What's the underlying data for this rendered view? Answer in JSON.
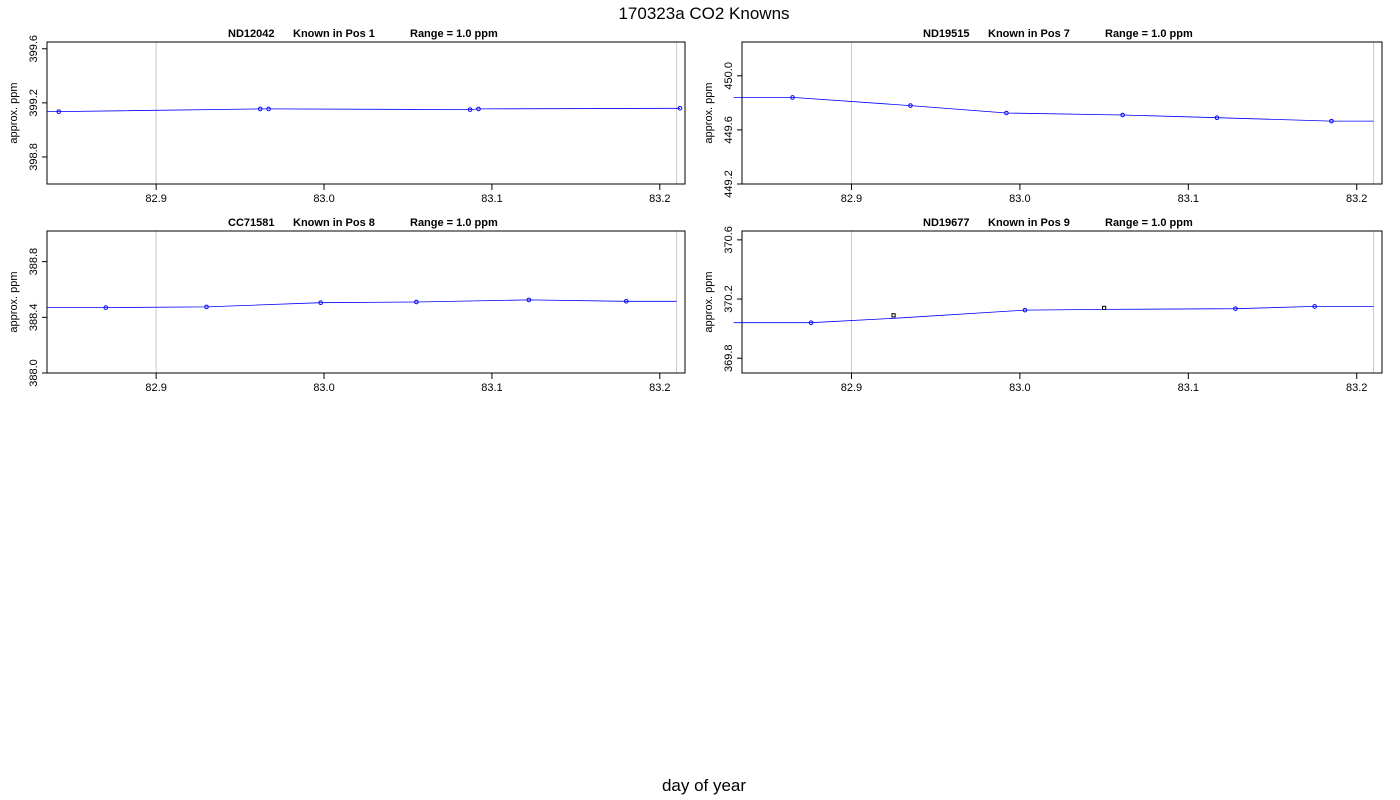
{
  "figure": {
    "title": "170323a   CO2 Knowns",
    "xlabel": "day of year"
  },
  "colors": {
    "line": "#0000ff",
    "points": "#0000ff",
    "marker_ref": "#000000",
    "vlines": "#c8c8c8",
    "frame": "#000000"
  },
  "chart_data": [
    {
      "type": "line",
      "title_parts": [
        "ND12042",
        "Known in Pos 1",
        "Range = 1.0 ppm"
      ],
      "ylabel": "approx. ppm",
      "xlim": [
        82.835,
        83.215
      ],
      "ylim": [
        398.6,
        399.65
      ],
      "xticks": [
        82.9,
        83.0,
        83.1,
        83.2
      ],
      "xtick_labels": [
        "82.9",
        "83.0",
        "83.1",
        "83.2"
      ],
      "yticks": [
        398.8,
        399.2,
        399.6
      ],
      "ytick_labels": [
        "398.8",
        "399.2",
        "399.6"
      ],
      "vlines": [
        82.9,
        83.21
      ],
      "line": {
        "x": [
          82.835,
          82.842,
          82.962,
          82.967,
          83.087,
          83.092,
          83.212
        ],
        "y": [
          399.135,
          399.135,
          399.155,
          399.155,
          399.15,
          399.155,
          399.16
        ]
      },
      "points": {
        "x": [
          82.842,
          82.962,
          82.967,
          83.087,
          83.092,
          83.212
        ],
        "y": [
          399.135,
          399.155,
          399.155,
          399.15,
          399.155,
          399.16
        ]
      },
      "ref_points": {
        "x": [],
        "y": []
      }
    },
    {
      "type": "line",
      "title_parts": [
        "ND19515",
        "Known in Pos 7",
        "Range = 1.0 ppm"
      ],
      "ylabel": "approx. ppm",
      "xlim": [
        82.835,
        83.215
      ],
      "ylim": [
        449.2,
        450.25
      ],
      "xticks": [
        82.9,
        83.0,
        83.1,
        83.2
      ],
      "xtick_labels": [
        "82.9",
        "83.0",
        "83.1",
        "83.2"
      ],
      "yticks": [
        449.2,
        449.6,
        450.0
      ],
      "ytick_labels": [
        "449.2",
        "449.6",
        "450.0"
      ],
      "vlines": [
        82.9,
        83.21
      ],
      "line": {
        "x": [
          82.83,
          82.865,
          82.935,
          82.992,
          83.061,
          83.117,
          83.185,
          83.21
        ],
        "y": [
          449.84,
          449.84,
          449.78,
          449.725,
          449.71,
          449.69,
          449.665,
          449.665
        ]
      },
      "points": {
        "x": [
          82.865,
          82.935,
          82.992,
          83.061,
          83.117,
          83.185
        ],
        "y": [
          449.84,
          449.78,
          449.725,
          449.71,
          449.69,
          449.665
        ]
      },
      "ref_points": {
        "x": [],
        "y": []
      }
    },
    {
      "type": "line",
      "title_parts": [
        "CC71581",
        "Known in Pos 8",
        "Range = 1.0 ppm"
      ],
      "ylabel": "approx. ppm",
      "xlim": [
        82.835,
        83.215
      ],
      "ylim": [
        388.0,
        389.02
      ],
      "xticks": [
        82.9,
        83.0,
        83.1,
        83.2
      ],
      "xtick_labels": [
        "82.9",
        "83.0",
        "83.1",
        "83.2"
      ],
      "yticks": [
        388.0,
        388.4,
        388.8
      ],
      "ytick_labels": [
        "388.0",
        "388.4",
        "388.8"
      ],
      "vlines": [
        82.9,
        83.21
      ],
      "line": {
        "x": [
          82.835,
          82.87,
          82.93,
          82.998,
          83.055,
          83.122,
          83.18,
          83.21
        ],
        "y": [
          388.47,
          388.47,
          388.475,
          388.505,
          388.51,
          388.525,
          388.515,
          388.515
        ]
      },
      "points": {
        "x": [
          82.87,
          82.93,
          82.998,
          83.055,
          83.122,
          83.18
        ],
        "y": [
          388.47,
          388.475,
          388.505,
          388.51,
          388.525,
          388.515
        ]
      },
      "ref_points": {
        "x": [],
        "y": []
      }
    },
    {
      "type": "line",
      "title_parts": [
        "ND19677",
        "Known in Pos 9",
        "Range = 1.0 ppm"
      ],
      "ylabel": "approx. ppm",
      "xlim": [
        82.835,
        83.215
      ],
      "ylim": [
        369.7,
        370.66
      ],
      "xticks": [
        82.9,
        83.0,
        83.1,
        83.2
      ],
      "xtick_labels": [
        "82.9",
        "83.0",
        "83.1",
        "83.2"
      ],
      "yticks": [
        369.8,
        370.2,
        370.6
      ],
      "ytick_labels": [
        "369.8",
        "370.2",
        "370.6"
      ],
      "vlines": [
        82.9,
        83.21
      ],
      "line": {
        "x": [
          82.83,
          82.876,
          82.925,
          83.003,
          83.05,
          83.128,
          83.175,
          83.21
        ],
        "y": [
          370.04,
          370.04,
          370.07,
          370.125,
          370.13,
          370.135,
          370.15,
          370.15
        ]
      },
      "points": {
        "x": [
          82.876,
          83.003,
          83.128,
          83.175
        ],
        "y": [
          370.04,
          370.125,
          370.135,
          370.15
        ]
      },
      "ref_points": {
        "x": [
          82.925,
          83.05
        ],
        "y": [
          370.09,
          370.14
        ]
      }
    }
  ]
}
